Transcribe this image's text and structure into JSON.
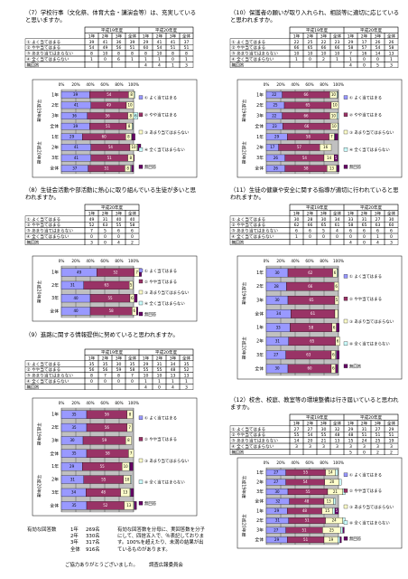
{
  "grades": [
    "1年",
    "2年",
    "3年",
    "全体"
  ],
  "row_labels": [
    "① よく当てはまる",
    "② やや当てはまる",
    "③ あまり当てはまらない",
    "④ 全く当てはまらない",
    "無回答"
  ],
  "colors": [
    "#9999ff",
    "#993366",
    "#ffffcc",
    "#ccffff",
    "#660066"
  ],
  "ticks": [
    {
      "value": 0,
      "label": "0%"
    },
    {
      "value": 20,
      "label": "20%"
    },
    {
      "value": 40,
      "label": "40%"
    },
    {
      "value": 60,
      "label": "60%"
    },
    {
      "value": 80,
      "label": "80%"
    },
    {
      "value": 100,
      "label": "100%"
    }
  ],
  "sections": [
    {
      "title": "（7）学校行事（文化祭、体育大会・講演会等）は、充実していると思いますか。",
      "years": [
        {
          "name": "平成19年度",
          "rows": [
            [
              39,
              41,
              36,
              39
            ],
            [
              54,
              49,
              56,
              51
            ],
            [
              8,
              10,
              8,
              8
            ],
            [
              1,
              0,
              6,
              1
            ],
            [
              null,
              null,
              null,
              null
            ]
          ]
        },
        {
          "name": "平成20年度",
          "rows": [
            [
              29,
              41,
              41,
              37
            ],
            [
              60,
              54,
              51,
              51
            ],
            [
              8,
              10,
              8,
              8
            ],
            [
              1,
              1,
              0,
              1
            ],
            [
              4,
              4,
              1,
              3
            ]
          ]
        }
      ]
    },
    {
      "title": "（10）保護者の願いが取り入れられ、相談等に適切に応じていると思われますか。",
      "years": [
        {
          "name": "平成19年度",
          "rows": [
            [
              22,
              25,
              22,
              23
            ],
            [
              66,
              65,
              66,
              66
            ],
            [
              10,
              10,
              10,
              10
            ],
            [
              1,
              0,
              2,
              1
            ],
            [
              null,
              null,
              null,
              null
            ]
          ]
        },
        {
          "name": "平成20年度",
          "rows": [
            [
              29,
              17,
              26,
              26
            ],
            [
              58,
              57,
              54,
              58
            ],
            [
              7,
              16,
              14,
              13
            ],
            [
              1,
              0,
              0,
              1
            ],
            [
              4,
              0,
              5,
              3
            ]
          ]
        }
      ]
    },
    {
      "title": "（8）生徒会活動や部活動に熱心に取り組んでいる生徒が多いと思われますか。",
      "years": [
        {
          "name": "平成20年度",
          "rows": [
            [
              49,
              31,
              40,
              40
            ],
            [
              52,
              63,
              55,
              58
            ],
            [
              7,
              5,
              6,
              6
            ],
            [
              0,
              0,
              0,
              0
            ],
            [
              3,
              0,
              4,
              2
            ]
          ]
        }
      ]
    },
    {
      "title": "（11）生徒の健康や安全に関する指導が適切に行われていると思われますか。",
      "years": [
        {
          "name": "平成19年度",
          "rows": [
            [
              30,
              28,
              30,
              34
            ],
            [
              62,
              66,
              65,
              61
            ],
            [
              6,
              6,
              5,
              4
            ],
            [
              1,
              0,
              0,
              0
            ],
            [
              null,
              null,
              null,
              null
            ]
          ]
        },
        {
          "name": "平成20年度",
          "rows": [
            [
              33,
              31,
              27,
              30
            ],
            [
              58,
              65,
              63,
              60
            ],
            [
              6,
              6,
              6,
              6
            ],
            [
              0,
              0,
              1,
              0
            ],
            [
              4,
              0,
              4,
              3
            ]
          ]
        }
      ]
    },
    {
      "title": "（9）進路に関する情報提供に努めていると思われますか。",
      "years": [
        {
          "name": "平成19年度",
          "rows": [
            [
              35,
              35,
              30,
              35
            ],
            [
              56,
              56,
              59,
              58
            ],
            [
              8,
              7,
              8,
              7
            ],
            [
              0,
              0,
              0,
              0
            ],
            [
              null,
              null,
              null,
              null
            ]
          ]
        },
        {
          "name": "平成20年度",
          "rows": [
            [
              29,
              31,
              34,
              35
            ],
            [
              55,
              55,
              48,
              52
            ],
            [
              10,
              10,
              13,
              13
            ],
            [
              1,
              1,
              1,
              1
            ],
            [
              4,
              0,
              4,
              3
            ]
          ]
        }
      ]
    },
    {
      "title": "（12）校舎、校庭、教室等の環境整備は行き届いていると思われますか。",
      "years": [
        {
          "name": "平成19年度",
          "rows": [
            [
              27,
              27,
              30,
              32
            ],
            [
              55,
              54,
              55,
              48
            ],
            [
              14,
              20,
              21,
              13
            ],
            [
              3,
              3,
              3,
              3
            ],
            [
              null,
              null,
              null,
              null
            ]
          ]
        },
        {
          "name": "平成20年度",
          "rows": [
            [
              29,
              31,
              27,
              29
            ],
            [
              48,
              51,
              51,
              51
            ],
            [
              15,
              24,
              25,
              19
            ],
            [
              3,
              3,
              3,
              3
            ],
            [
              5,
              0,
              2,
              2
            ]
          ]
        }
      ]
    }
  ],
  "footer": {
    "label": "有効な回答数",
    "counts": [
      {
        "grade": "1年",
        "n": "269名"
      },
      {
        "grade": "2年",
        "n": "330名"
      },
      {
        "grade": "3年",
        "n": "317名"
      },
      {
        "grade": "全体",
        "n": "916名"
      }
    ],
    "note": "有効な回答数を分母に、実回答数を分子にして、四捨五入で、％表記しております。100%を超えたり、未満の結果が出ているものがあります。",
    "thanks": "ご協力ありがとうございました。",
    "committee": "調査広報委員会"
  }
}
